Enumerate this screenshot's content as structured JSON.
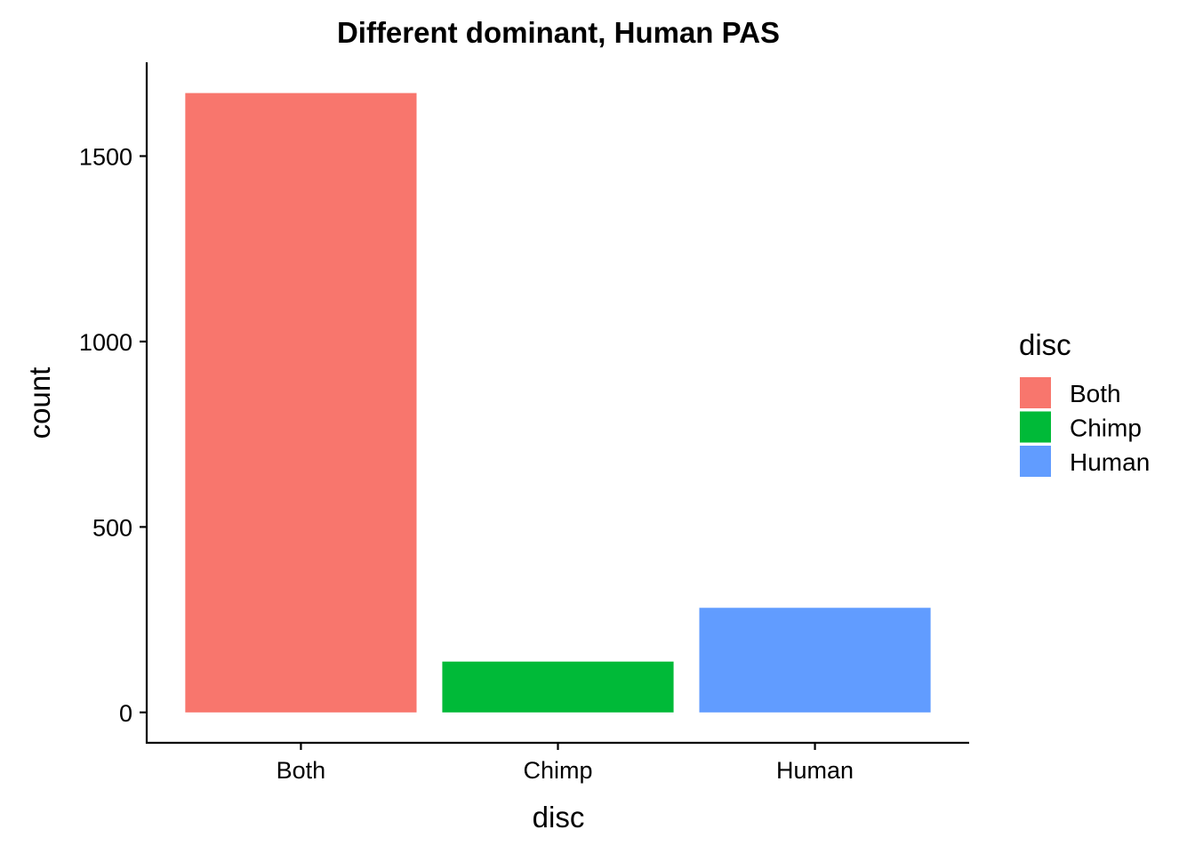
{
  "chart_data": {
    "type": "bar",
    "title": "Different dominant, Human PAS",
    "xlabel": "disc",
    "ylabel": "count",
    "categories": [
      "Both",
      "Chimp",
      "Human"
    ],
    "values": [
      1670,
      137,
      282
    ],
    "colors": [
      "#F8766D",
      "#00BA38",
      "#619CFF"
    ],
    "ylim": [
      -82,
      1753
    ],
    "yticks": [
      0,
      500,
      1000,
      1500
    ],
    "grid": false,
    "legend": {
      "title": "disc",
      "position": "right",
      "items": [
        {
          "label": "Both",
          "color": "#F8766D"
        },
        {
          "label": "Chimp",
          "color": "#00BA38"
        },
        {
          "label": "Human",
          "color": "#619CFF"
        }
      ]
    }
  }
}
